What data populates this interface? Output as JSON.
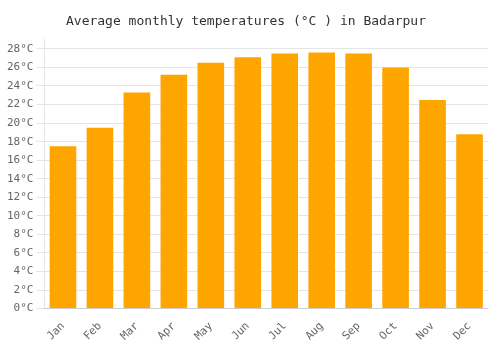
{
  "chart_data": {
    "type": "bar",
    "title": "Average monthly temperatures (°C ) in Badarpur",
    "categories": [
      "Jan",
      "Feb",
      "Mar",
      "Apr",
      "May",
      "Jun",
      "Jul",
      "Aug",
      "Sep",
      "Oct",
      "Nov",
      "Dec"
    ],
    "values": [
      17.5,
      19.5,
      23.3,
      25.2,
      26.5,
      27.1,
      27.5,
      27.6,
      27.5,
      26.0,
      22.5,
      18.8
    ],
    "color": "#FFA500",
    "ylim": [
      0,
      29
    ],
    "yticks": [
      {
        "value": 0,
        "label": "0°C"
      },
      {
        "value": 2,
        "label": "2°C"
      },
      {
        "value": 4,
        "label": "4°C"
      },
      {
        "value": 6,
        "label": "6°C"
      },
      {
        "value": 8,
        "label": "8°C"
      },
      {
        "value": 10,
        "label": "10°C"
      },
      {
        "value": 12,
        "label": "12°C"
      },
      {
        "value": 14,
        "label": "14°C"
      },
      {
        "value": 16,
        "label": "16°C"
      },
      {
        "value": 18,
        "label": "18°C"
      },
      {
        "value": 20,
        "label": "20°C"
      },
      {
        "value": 22,
        "label": "22°C"
      },
      {
        "value": 24,
        "label": "24°C"
      },
      {
        "value": 26,
        "label": "26°C"
      },
      {
        "value": 28,
        "label": "28°C"
      }
    ],
    "grid": true
  }
}
